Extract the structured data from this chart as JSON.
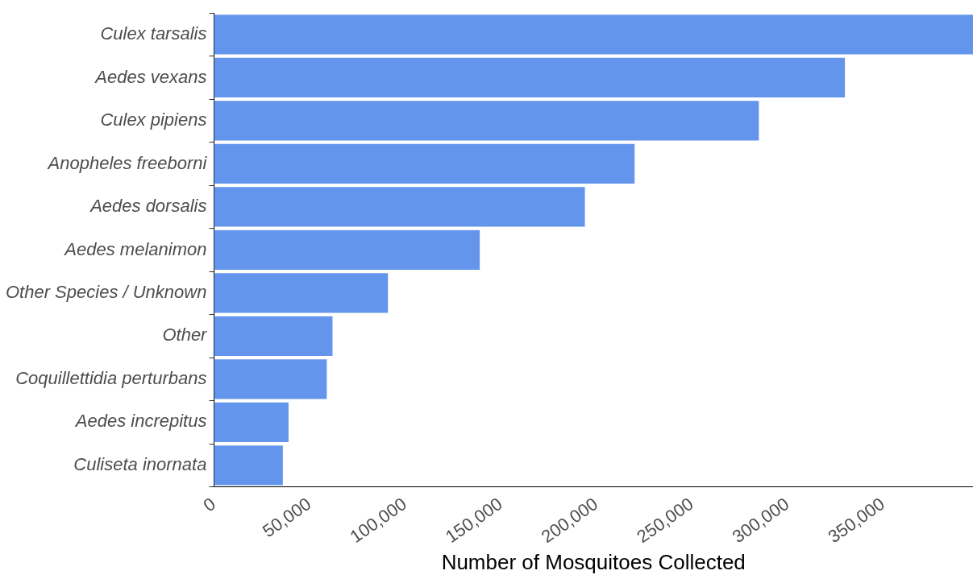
{
  "chart_data": {
    "type": "bar",
    "orientation": "horizontal",
    "xlabel": "Number of Mosquitoes Collected",
    "categories": [
      "Culex tarsalis",
      "Aedes vexans",
      "Culex pipiens",
      "Anopheles freeborni",
      "Aedes dorsalis",
      "Aedes melanimon",
      "Other Species / Unknown",
      "Other",
      "Coquillettidia perturbans",
      "Aedes increpitus",
      "Culiseta inornata"
    ],
    "values": [
      397000,
      330000,
      285000,
      220000,
      194000,
      139000,
      91000,
      62000,
      59000,
      39000,
      36000
    ],
    "color": "#6495ed",
    "xlim": [
      0,
      397000
    ],
    "xticks": [
      {
        "value": 0,
        "label": "0"
      },
      {
        "value": 50000,
        "label": "50,000"
      },
      {
        "value": 100000,
        "label": "100,000"
      },
      {
        "value": 150000,
        "label": "150,000"
      },
      {
        "value": 200000,
        "label": "200,000"
      },
      {
        "value": 250000,
        "label": "250,000"
      },
      {
        "value": 300000,
        "label": "300,000"
      },
      {
        "value": 350000,
        "label": "350,000"
      }
    ],
    "grid": false,
    "legend": false
  }
}
